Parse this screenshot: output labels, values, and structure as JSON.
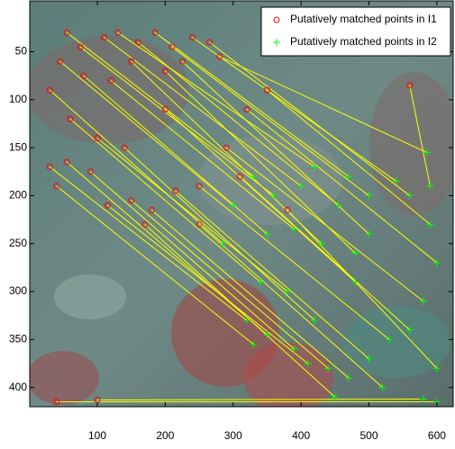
{
  "chart_data": {
    "type": "scatter",
    "xlim": [
      0.5,
      624
    ],
    "ylim": [
      -3,
      420
    ],
    "y_reversed": true,
    "xticks": [
      100,
      200,
      300,
      400,
      500,
      600
    ],
    "yticks": [
      50,
      100,
      150,
      200,
      250,
      300,
      350,
      400
    ],
    "match_line_color": "#ffff00",
    "legend": "upper right",
    "series": [
      {
        "name": "Putatively matched points in I1",
        "color": "#ff0000",
        "marker": "o",
        "x": [
          55,
          75,
          110,
          130,
          160,
          185,
          210,
          240,
          265,
          45,
          30,
          80,
          120,
          150,
          200,
          225,
          280,
          30,
          55,
          90,
          40,
          115,
          150,
          180,
          215,
          250,
          290,
          320,
          350,
          60,
          100,
          140,
          170,
          250,
          40,
          100,
          560,
          310,
          380,
          200
        ],
        "y": [
          30,
          45,
          35,
          30,
          40,
          30,
          45,
          35,
          40,
          60,
          90,
          75,
          80,
          60,
          70,
          60,
          55,
          170,
          165,
          175,
          190,
          210,
          205,
          215,
          195,
          190,
          150,
          110,
          90,
          120,
          140,
          150,
          230,
          230,
          415,
          413,
          85,
          180,
          215,
          110
        ]
      },
      {
        "name": "Putatively matched points in I2",
        "color": "#00ff00",
        "marker": "+",
        "x": [
          330,
          360,
          400,
          420,
          455,
          470,
          500,
          540,
          560,
          300,
          285,
          350,
          390,
          430,
          480,
          500,
          585,
          320,
          350,
          390,
          330,
          410,
          440,
          470,
          500,
          530,
          580,
          600,
          590,
          340,
          380,
          420,
          450,
          520,
          600,
          580,
          590,
          560,
          600,
          480
        ],
        "y": [
          180,
          200,
          190,
          170,
          210,
          180,
          200,
          185,
          200,
          210,
          250,
          240,
          235,
          250,
          260,
          240,
          155,
          330,
          345,
          360,
          355,
          375,
          380,
          390,
          370,
          350,
          310,
          270,
          230,
          290,
          300,
          330,
          410,
          400,
          415,
          412,
          190,
          340,
          380,
          290
        ]
      }
    ]
  }
}
